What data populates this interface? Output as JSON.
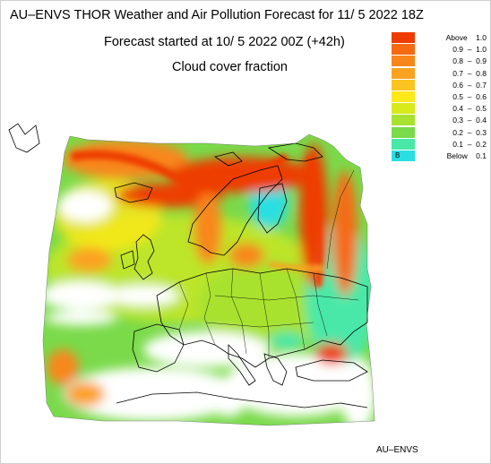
{
  "header": {
    "title": "AU–ENVS THOR Weather and Air Pollution Forecast for 11/ 5 2022  18Z",
    "subtitle": "Forecast started at 10/ 5 2022  00Z (+42h)",
    "field": "Cloud cover fraction"
  },
  "legend": [
    {
      "label": "Above    1.0",
      "color": "#ee3c00"
    },
    {
      "label": "0.9  –  1.0",
      "color": "#f66a12"
    },
    {
      "label": "0.8  –  0.9",
      "color": "#f8871a"
    },
    {
      "label": "0.7  –  0.8",
      "color": "#fba220"
    },
    {
      "label": "0.6  –  0.7",
      "color": "#fcc420"
    },
    {
      "label": "0.5  –  0.6",
      "color": "#ffe818"
    },
    {
      "label": "0.4  –  0.5",
      "color": "#d8ea1a"
    },
    {
      "label": "0.3  –  0.4",
      "color": "#a8e22e"
    },
    {
      "label": "0.2  –  0.3",
      "color": "#7ada4a"
    },
    {
      "label": "0.1  –  0.2",
      "color": "#48e8a8"
    },
    {
      "label": "Below    0.1",
      "color": "#29dfe2",
      "marker": "B"
    }
  ],
  "credit": "AU–ENVS"
}
